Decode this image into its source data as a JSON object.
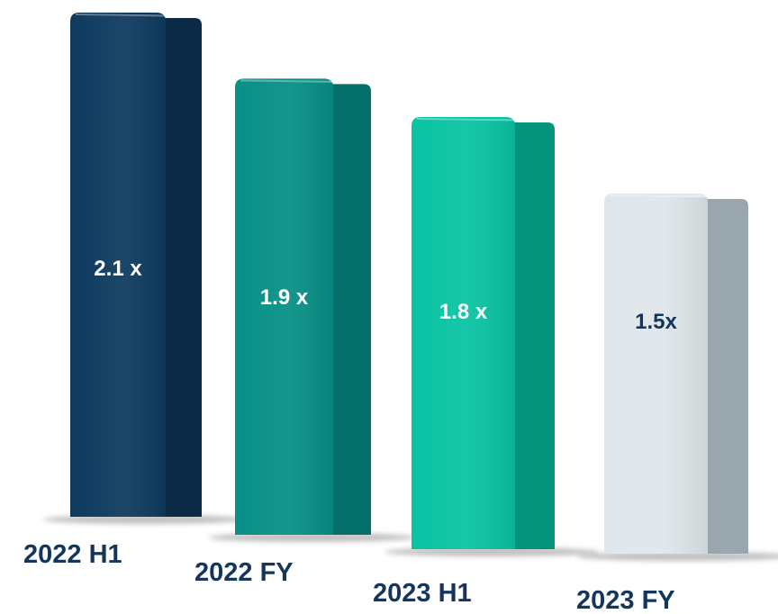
{
  "chart_data": {
    "type": "bar",
    "title": "",
    "xlabel": "",
    "ylabel": "",
    "categories": [
      "2022 H1",
      "2022 FY",
      "2023 H1",
      "2023 FY"
    ],
    "values": [
      2.1,
      1.9,
      1.8,
      1.5
    ],
    "value_labels": [
      "2.1 x",
      "1.9 x",
      "1.8 x",
      "1.5x"
    ],
    "ylim": [
      0,
      2.1
    ],
    "grid": false,
    "legend": "none",
    "colors": {
      "bars": [
        {
          "front": "#0e3a5e",
          "side": "#0a2a46",
          "label": "#ffffff"
        },
        {
          "front": "#078f86",
          "side": "#05706a",
          "label": "#ffffff"
        },
        {
          "front": "#08c3a2",
          "side": "#03927a",
          "label": "#ffffff"
        },
        {
          "front": "#e0e6ea",
          "side": "#9aa6ad",
          "label": "#14365c"
        }
      ],
      "category_text": "#14365c"
    }
  }
}
